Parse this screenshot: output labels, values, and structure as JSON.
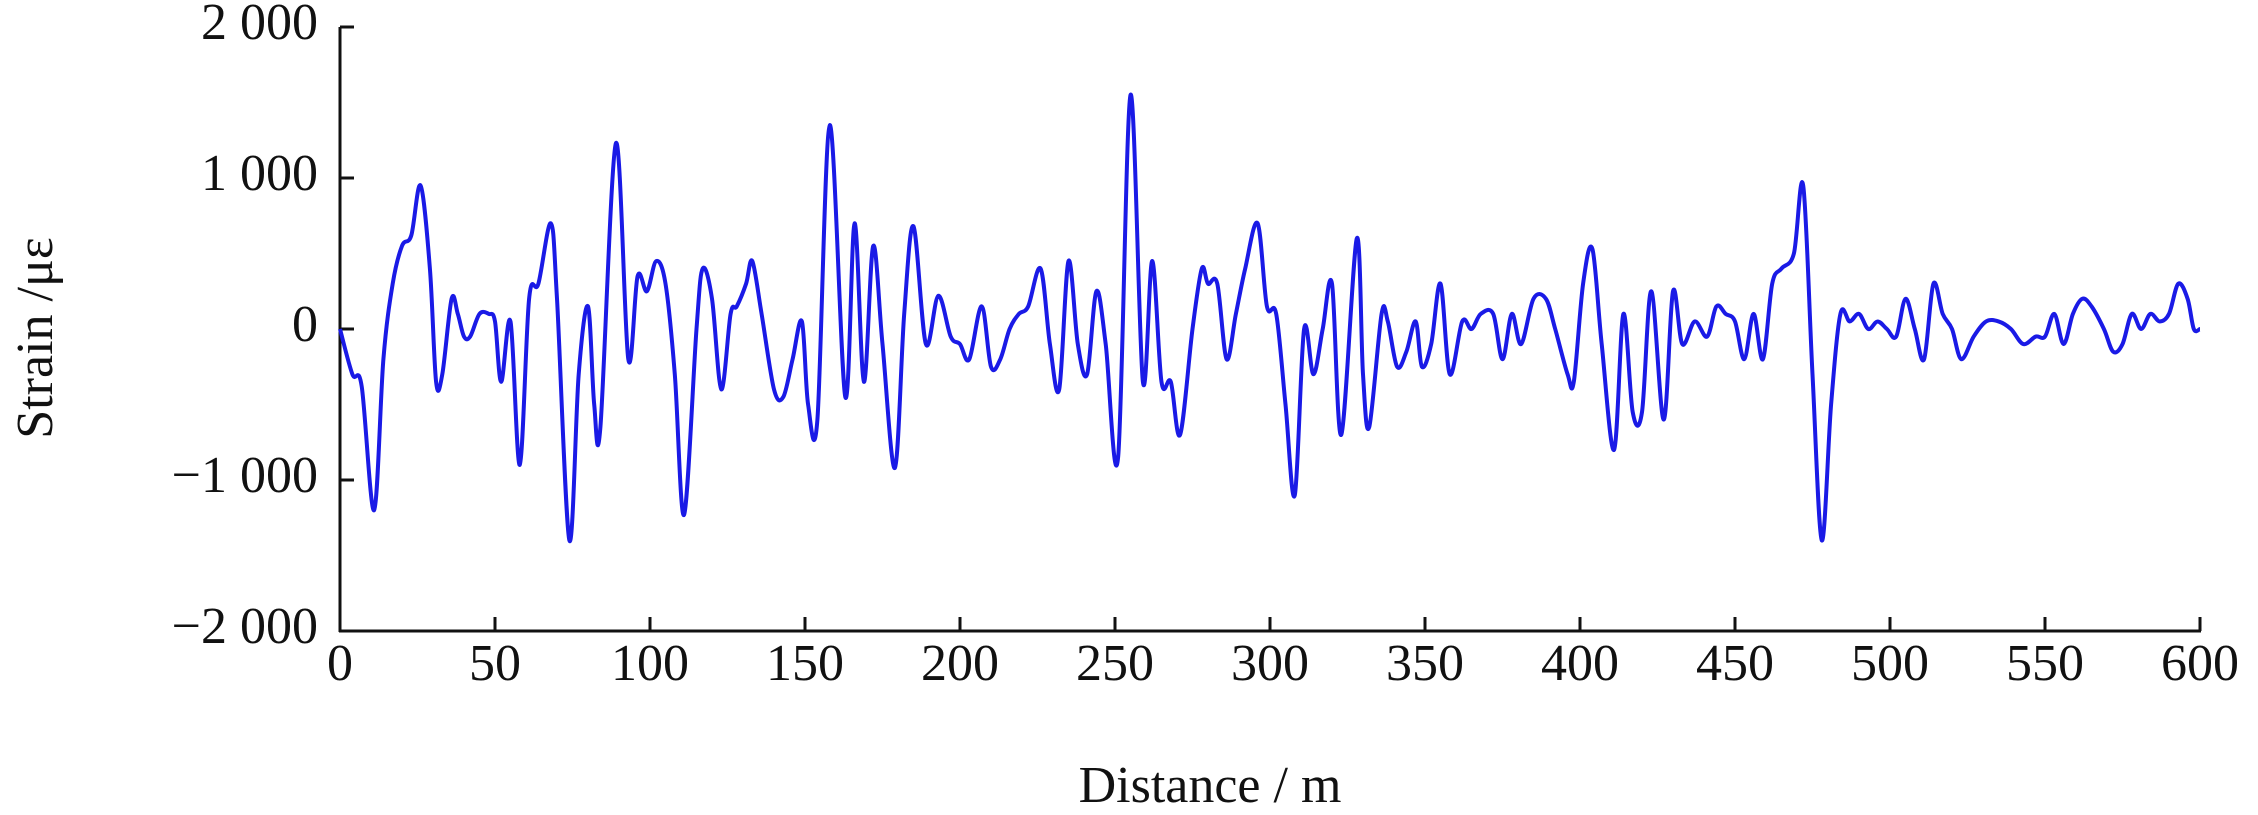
{
  "chart_data": {
    "type": "line",
    "x_label": "Distance / m",
    "y_label": "Strain /με",
    "color": "#1a1ae6",
    "xlim": [
      0,
      600
    ],
    "xticks": [
      0,
      50,
      100,
      150,
      200,
      250,
      300,
      350,
      400,
      450,
      500,
      550,
      600
    ],
    "ylim": [
      -2000,
      2000
    ],
    "yticks": [
      {
        "value": -2000,
        "label": "−2 000"
      },
      {
        "value": -1000,
        "label": "−1 000"
      },
      0,
      {
        "value": 1000,
        "label": "1 000"
      },
      {
        "value": 2000,
        "label": "2 000"
      }
    ],
    "x": [
      0,
      4,
      7,
      11,
      14,
      17,
      20,
      23,
      26,
      29,
      31,
      33,
      36,
      38,
      40,
      42,
      45,
      48,
      50,
      52,
      55,
      58,
      61,
      64,
      68,
      70,
      74,
      77,
      80,
      82,
      84,
      89,
      93,
      96,
      99,
      102,
      105,
      108,
      111,
      115,
      117,
      120,
      123,
      126,
      128,
      131,
      133,
      136,
      140,
      143,
      146,
      149,
      151,
      154,
      158,
      163,
      166,
      169,
      172,
      175,
      179,
      182,
      185,
      189,
      193,
      197,
      200,
      203,
      207,
      210,
      213,
      216,
      219,
      222,
      226,
      229,
      232,
      235,
      238,
      241,
      244,
      247,
      251,
      255,
      259,
      262,
      265,
      268,
      271,
      275,
      278,
      280,
      283,
      286,
      289,
      292,
      296,
      299,
      302,
      305,
      308,
      311,
      314,
      317,
      320,
      323,
      328,
      330,
      332,
      336,
      338,
      341,
      344,
      347,
      349,
      352,
      355,
      358,
      362,
      365,
      368,
      372,
      375,
      378,
      381,
      385,
      389,
      392,
      396,
      398,
      401,
      404,
      407,
      411,
      414,
      417,
      420,
      423,
      427,
      430,
      433,
      437,
      441,
      444,
      447,
      450,
      453,
      456,
      459,
      462,
      465,
      469,
      472,
      475,
      478,
      481,
      484,
      487,
      490,
      493,
      496,
      499,
      502,
      505,
      508,
      511,
      514,
      517,
      520,
      523,
      527,
      531,
      535,
      539,
      543,
      547,
      550,
      553,
      556,
      559,
      562,
      565,
      569,
      572,
      575,
      578,
      581,
      584,
      587,
      590,
      593,
      596,
      598,
      600
    ],
    "values": [
      0,
      -300,
      -380,
      -1200,
      -200,
      300,
      550,
      620,
      950,
      400,
      -350,
      -300,
      200,
      100,
      -50,
      -50,
      100,
      100,
      50,
      -350,
      50,
      -900,
      200,
      300,
      700,
      200,
      -1400,
      -300,
      150,
      -500,
      -650,
      1230,
      -200,
      350,
      250,
      450,
      300,
      -300,
      -1230,
      0,
      400,
      200,
      -400,
      100,
      150,
      300,
      450,
      100,
      -400,
      -450,
      -200,
      50,
      -500,
      -600,
      1350,
      -450,
      700,
      -350,
      550,
      -100,
      -920,
      100,
      680,
      -100,
      220,
      -50,
      -100,
      -200,
      150,
      -250,
      -200,
      0,
      100,
      150,
      400,
      -100,
      -400,
      450,
      -100,
      -300,
      250,
      -100,
      -850,
      1550,
      -350,
      450,
      -350,
      -350,
      -700,
      0,
      400,
      300,
      300,
      -200,
      100,
      400,
      700,
      150,
      100,
      -500,
      -1100,
      0,
      -300,
      0,
      300,
      -700,
      600,
      -300,
      -650,
      100,
      50,
      -250,
      -150,
      50,
      -250,
      -100,
      300,
      -300,
      50,
      0,
      100,
      100,
      -200,
      100,
      -100,
      200,
      200,
      0,
      -300,
      -350,
      300,
      530,
      -100,
      -800,
      100,
      -550,
      -550,
      250,
      -600,
      250,
      -100,
      50,
      -50,
      150,
      100,
      50,
      -200,
      100,
      -200,
      300,
      400,
      500,
      950,
      -300,
      -1400,
      -500,
      100,
      50,
      100,
      0,
      50,
      0,
      -50,
      200,
      0,
      -200,
      300,
      100,
      0,
      -200,
      -50,
      50,
      50,
      0,
      -100,
      -50,
      -50,
      100,
      -100,
      100,
      200,
      150,
      0,
      -150,
      -100,
      100,
      0,
      100,
      50,
      100,
      300,
      200,
      0,
      0
    ]
  }
}
